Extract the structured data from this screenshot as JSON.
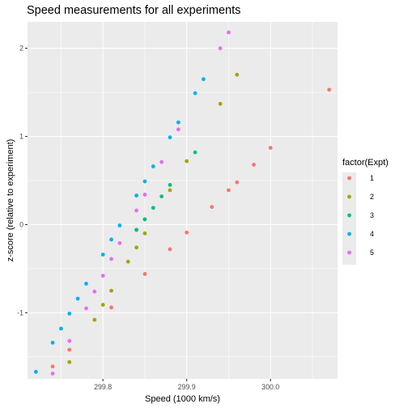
{
  "chart_data": {
    "type": "scatter",
    "title": "Speed measurements for all experiments",
    "xlabel": "Speed (1000 km/s)",
    "ylabel": "z-score (relative to experiment)",
    "xlim": [
      299.71,
      300.08
    ],
    "ylim": [
      -1.75,
      2.3
    ],
    "x_ticks": [
      299.8,
      299.9,
      300.0
    ],
    "x_tick_labels": [
      "299.8",
      "299.9",
      "300.0"
    ],
    "y_ticks": [
      -1,
      0,
      1,
      2
    ],
    "y_tick_labels": [
      "-1",
      "0",
      "1",
      "2"
    ],
    "grid": true,
    "legend_position": "right",
    "legend_title": "factor(Expt)",
    "series": [
      {
        "name": "1",
        "color": "#F8766D",
        "points": [
          [
            300.07,
            1.53
          ],
          [
            300.0,
            0.87
          ],
          [
            299.98,
            0.68
          ],
          [
            299.96,
            0.48
          ],
          [
            299.95,
            0.39
          ],
          [
            299.93,
            0.2
          ],
          [
            299.9,
            -0.09
          ],
          [
            299.88,
            -0.28
          ],
          [
            299.85,
            -0.56
          ],
          [
            299.81,
            -0.94
          ],
          [
            299.76,
            -1.42
          ],
          [
            299.74,
            -1.61
          ]
        ]
      },
      {
        "name": "2",
        "color": "#A3A500",
        "points": [
          [
            299.96,
            1.7
          ],
          [
            299.94,
            1.37
          ],
          [
            299.9,
            0.72
          ],
          [
            299.88,
            0.39
          ],
          [
            299.85,
            0.06
          ],
          [
            299.84,
            -0.06
          ],
          [
            299.85,
            -0.1
          ],
          [
            299.84,
            -0.26
          ],
          [
            299.83,
            -0.42
          ],
          [
            299.81,
            -0.75
          ],
          [
            299.8,
            -0.91
          ],
          [
            299.79,
            -1.08
          ],
          [
            299.76,
            -1.56
          ]
        ]
      },
      {
        "name": "3",
        "color": "#00BF7D",
        "points": [
          [
            299.91,
            0.82
          ],
          [
            299.88,
            0.45
          ],
          [
            299.87,
            0.32
          ],
          [
            299.86,
            0.19
          ],
          [
            299.85,
            0.06
          ],
          [
            299.84,
            -0.06
          ]
        ]
      },
      {
        "name": "4",
        "color": "#00B0F6",
        "points": [
          [
            299.92,
            1.65
          ],
          [
            299.91,
            1.49
          ],
          [
            299.89,
            1.16
          ],
          [
            299.88,
            0.99
          ],
          [
            299.86,
            0.66
          ],
          [
            299.85,
            0.49
          ],
          [
            299.84,
            0.33
          ],
          [
            299.82,
            -0.01
          ],
          [
            299.81,
            -0.17
          ],
          [
            299.8,
            -0.34
          ],
          [
            299.78,
            -0.67
          ],
          [
            299.77,
            -0.84
          ],
          [
            299.76,
            -1.01
          ],
          [
            299.75,
            -1.18
          ],
          [
            299.74,
            -1.34
          ],
          [
            299.72,
            -1.67
          ]
        ]
      },
      {
        "name": "5",
        "color": "#E76BF3",
        "points": [
          [
            299.95,
            2.18
          ],
          [
            299.94,
            2.0
          ],
          [
            299.89,
            1.08
          ],
          [
            299.87,
            0.71
          ],
          [
            299.85,
            0.34
          ],
          [
            299.84,
            0.16
          ],
          [
            299.82,
            -0.21
          ],
          [
            299.81,
            -0.39
          ],
          [
            299.8,
            -0.58
          ],
          [
            299.79,
            -0.76
          ],
          [
            299.78,
            -0.95
          ],
          [
            299.76,
            -1.32
          ],
          [
            299.74,
            -1.69
          ]
        ]
      }
    ]
  }
}
